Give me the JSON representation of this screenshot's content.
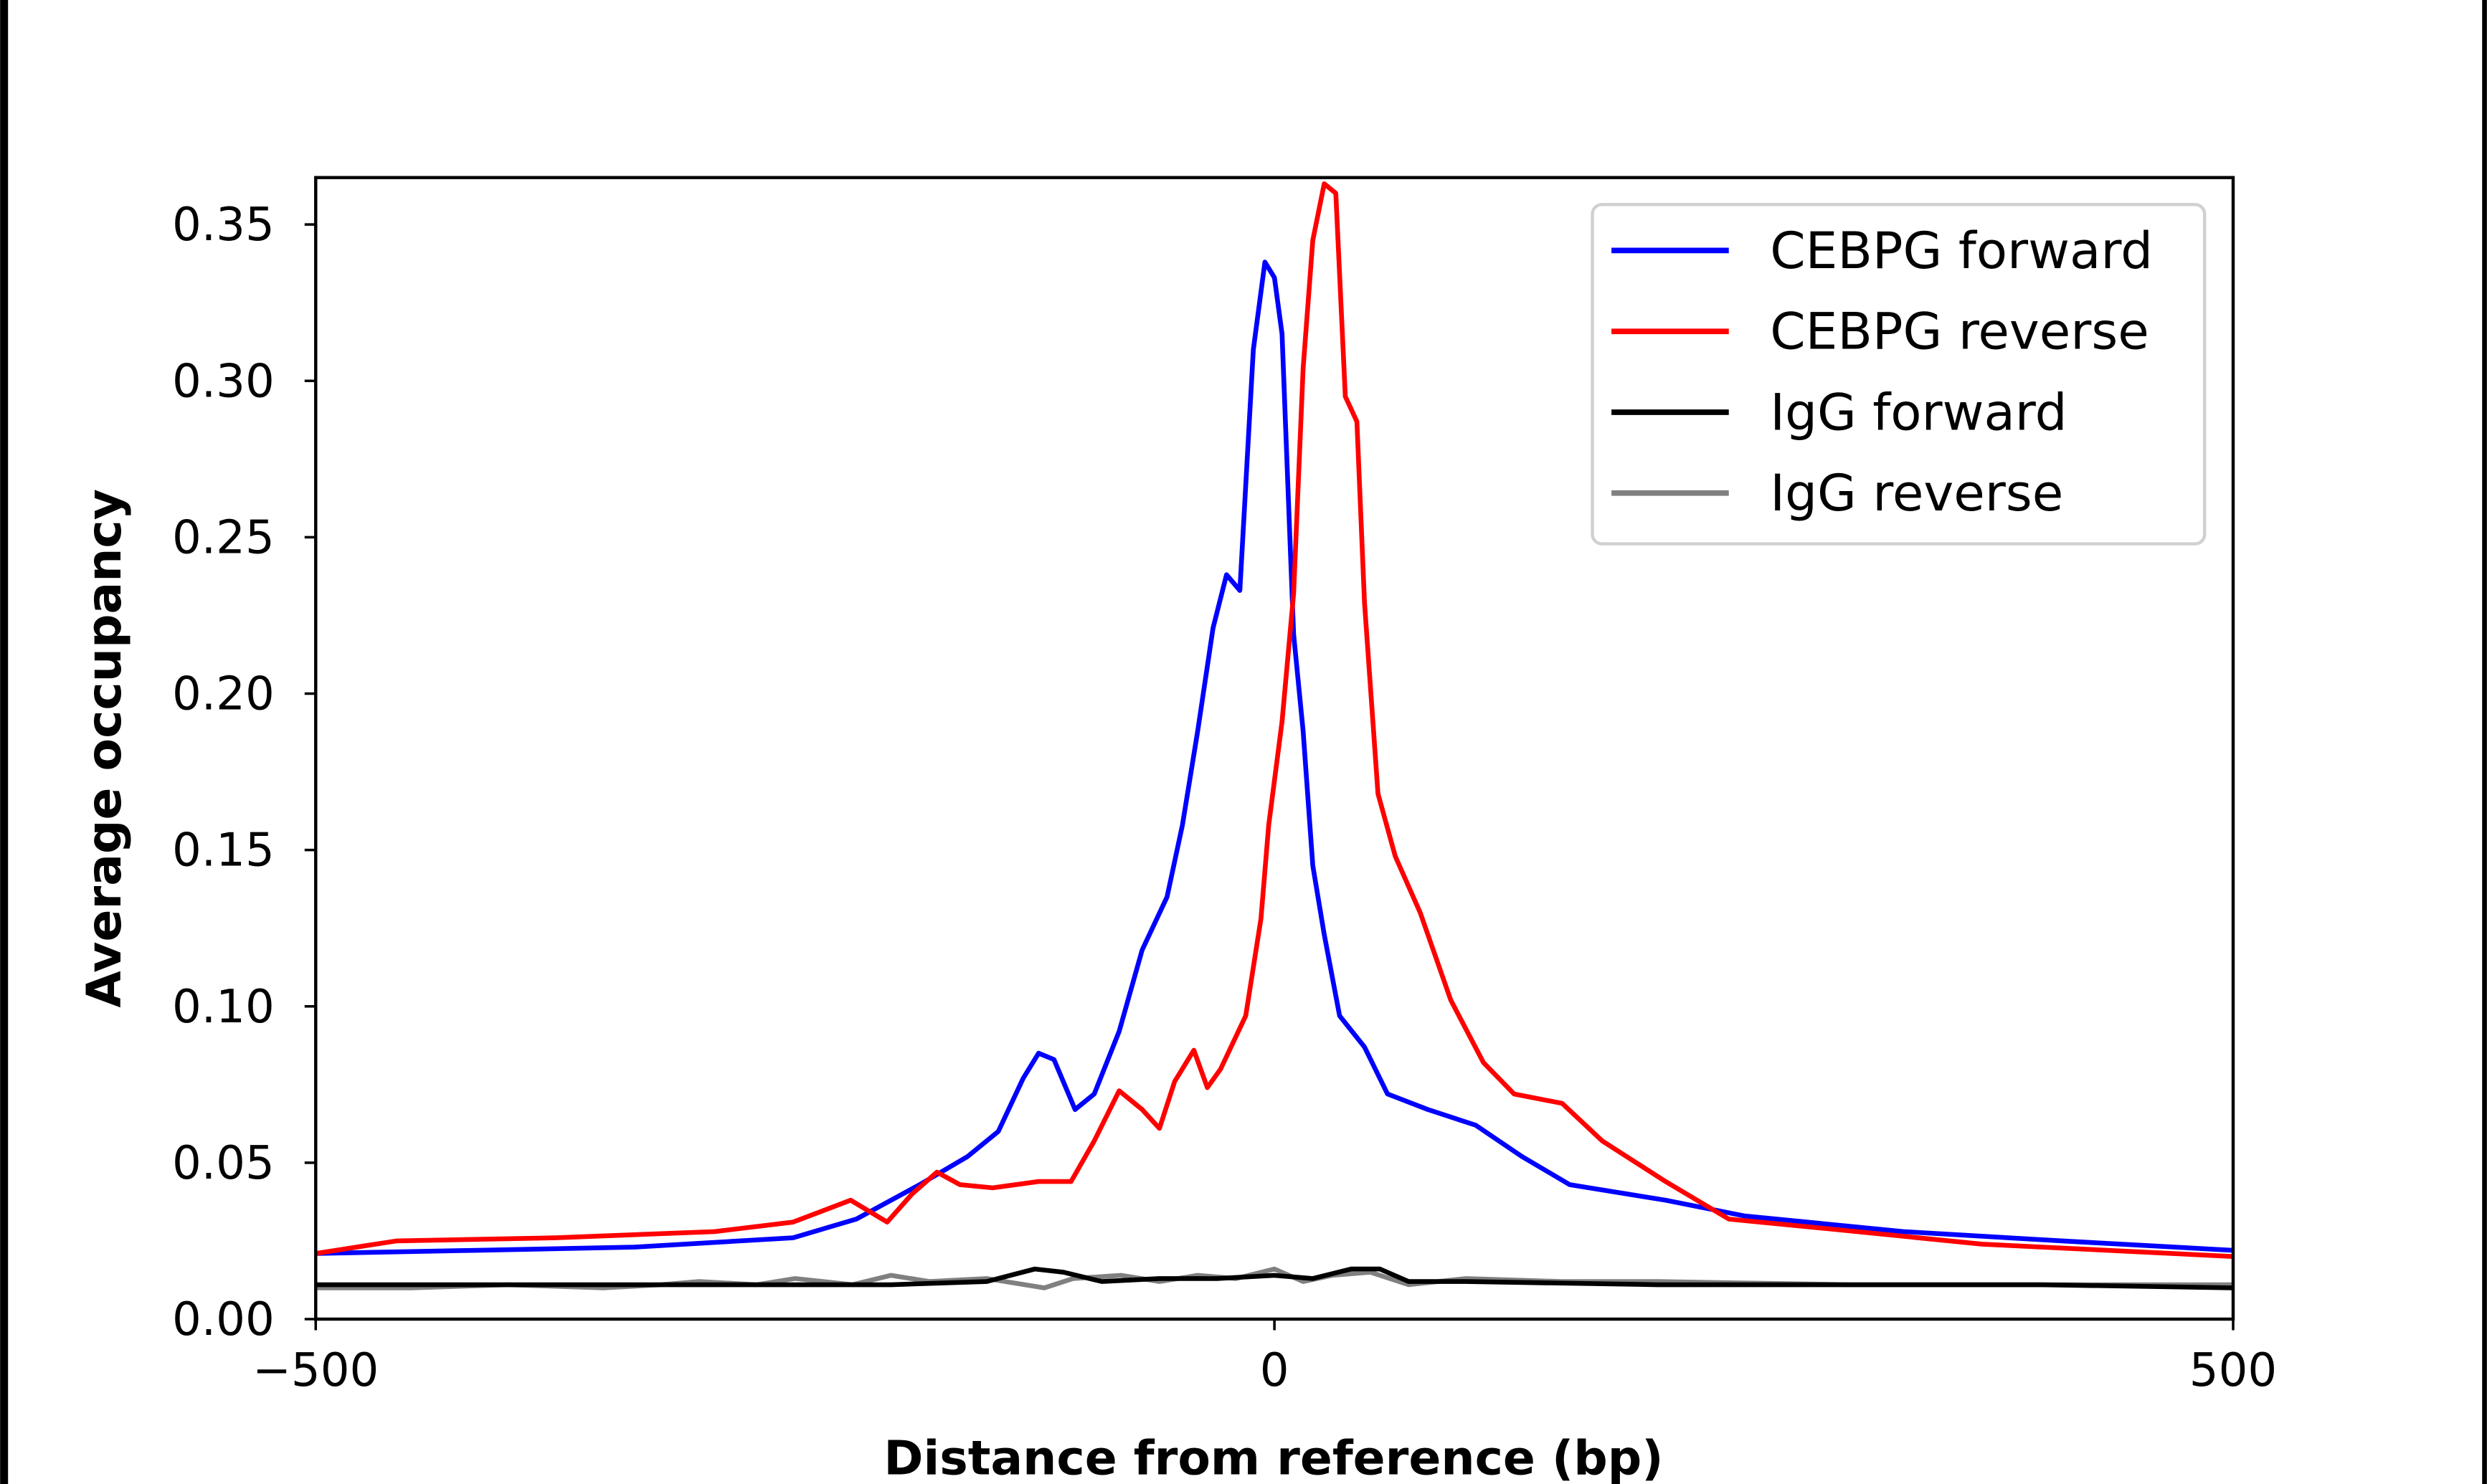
{
  "chart_data": {
    "type": "line",
    "title": "",
    "xlabel": "Distance from reference (bp)",
    "ylabel": "Average occupancy",
    "xlim": [
      -500,
      500
    ],
    "ylim": [
      0,
      0.365
    ],
    "xticks": [
      -500,
      0,
      500
    ],
    "xtick_labels": [
      "−500",
      "0",
      "500"
    ],
    "yticks": [
      0,
      0.05,
      0.1,
      0.15,
      0.2,
      0.25,
      0.3,
      0.35
    ],
    "ytick_labels": [
      "0.00",
      "0.05",
      "0.10",
      "0.15",
      "0.20",
      "0.25",
      "0.30",
      "0.35"
    ],
    "grid": false,
    "legend_position": "top-right",
    "series": [
      {
        "name": "CEBPG forward",
        "color": "#0000ff",
        "x": [
          -500,
          -416,
          -334,
          -251,
          -218,
          -185,
          -160,
          -144,
          -131,
          -123,
          -115,
          -104,
          -94,
          -81,
          -69,
          -56,
          -48,
          -40,
          -32,
          -25,
          -18,
          -11,
          -5,
          0,
          4,
          10,
          15,
          20,
          26,
          34,
          47,
          59,
          80,
          105,
          129,
          154,
          204,
          245,
          328,
          411,
          500
        ],
        "y": [
          0.021,
          0.022,
          0.023,
          0.026,
          0.032,
          0.043,
          0.052,
          0.06,
          0.077,
          0.085,
          0.083,
          0.067,
          0.072,
          0.092,
          0.118,
          0.135,
          0.158,
          0.188,
          0.221,
          0.238,
          0.233,
          0.31,
          0.338,
          0.333,
          0.315,
          0.219,
          0.188,
          0.145,
          0.123,
          0.097,
          0.087,
          0.072,
          0.067,
          0.062,
          0.052,
          0.043,
          0.038,
          0.033,
          0.028,
          0.025,
          0.022
        ]
      },
      {
        "name": "CEBPG reverse",
        "color": "#ff0000",
        "x": [
          -500,
          -458,
          -375,
          -292,
          -251,
          -221,
          -202,
          -189,
          -176,
          -164,
          -147,
          -123,
          -106,
          -94,
          -81,
          -69,
          -60,
          -52,
          -42,
          -35,
          -28,
          -15,
          -7,
          -3,
          4,
          10,
          15,
          20,
          26,
          32,
          37,
          43,
          47,
          54,
          63,
          76,
          92,
          109,
          125,
          150,
          171,
          204,
          237,
          287,
          369,
          500
        ],
        "y": [
          0.021,
          0.025,
          0.026,
          0.028,
          0.031,
          0.038,
          0.031,
          0.04,
          0.047,
          0.043,
          0.042,
          0.044,
          0.044,
          0.057,
          0.073,
          0.067,
          0.061,
          0.076,
          0.086,
          0.074,
          0.08,
          0.097,
          0.128,
          0.158,
          0.191,
          0.232,
          0.304,
          0.345,
          0.363,
          0.36,
          0.295,
          0.287,
          0.229,
          0.168,
          0.148,
          0.13,
          0.102,
          0.082,
          0.072,
          0.069,
          0.057,
          0.044,
          0.032,
          0.029,
          0.024,
          0.02
        ]
      },
      {
        "name": "IgG forward",
        "color": "#000000",
        "x": [
          -500,
          -400,
          -300,
          -200,
          -150,
          -125,
          -110,
          -90,
          -60,
          -30,
          0,
          20,
          40,
          55,
          70,
          100,
          200,
          300,
          400,
          500
        ],
        "y": [
          0.011,
          0.011,
          0.011,
          0.011,
          0.012,
          0.016,
          0.015,
          0.012,
          0.013,
          0.013,
          0.014,
          0.013,
          0.016,
          0.016,
          0.012,
          0.012,
          0.011,
          0.011,
          0.011,
          0.01
        ]
      },
      {
        "name": "IgG reverse",
        "color": "#808080",
        "x": [
          -500,
          -450,
          -400,
          -350,
          -320,
          -300,
          -270,
          -250,
          -220,
          -200,
          -180,
          -150,
          -120,
          -105,
          -80,
          -60,
          -40,
          -20,
          0,
          15,
          30,
          50,
          70,
          100,
          150,
          200,
          300,
          400,
          500
        ],
        "y": [
          0.01,
          0.01,
          0.011,
          0.01,
          0.011,
          0.012,
          0.011,
          0.013,
          0.011,
          0.014,
          0.012,
          0.013,
          0.01,
          0.013,
          0.014,
          0.012,
          0.014,
          0.013,
          0.016,
          0.012,
          0.014,
          0.015,
          0.011,
          0.013,
          0.012,
          0.012,
          0.011,
          0.011,
          0.011
        ]
      }
    ]
  }
}
